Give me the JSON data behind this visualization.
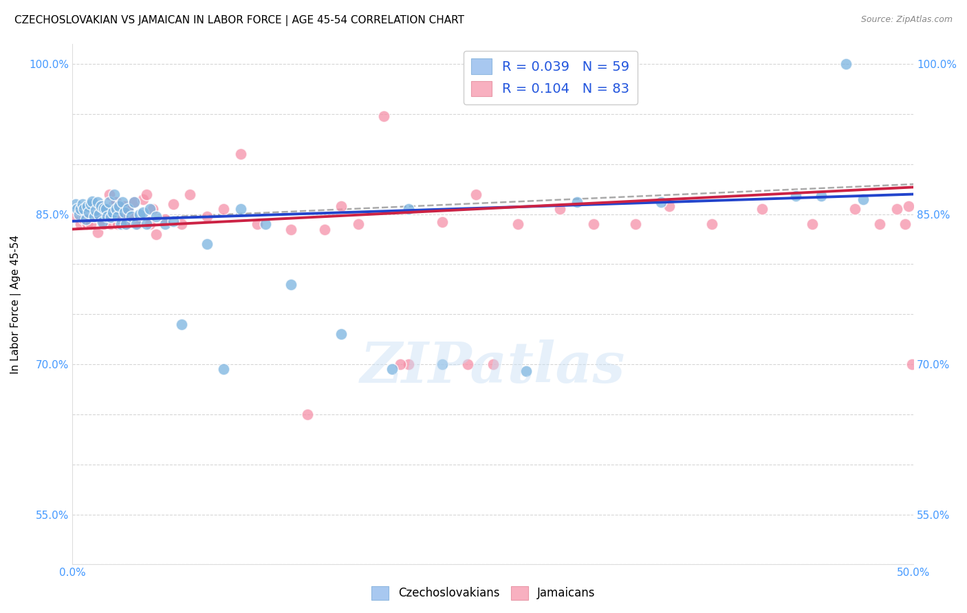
{
  "title": "CZECHOSLOVAKIAN VS JAMAICAN IN LABOR FORCE | AGE 45-54 CORRELATION CHART",
  "source": "Source: ZipAtlas.com",
  "ylabel": "In Labor Force | Age 45-54",
  "xlim": [
    0.0,
    0.5
  ],
  "ylim": [
    0.5,
    1.02
  ],
  "watermark": "ZIPatlas",
  "blue_scatter_x": [
    0.002,
    0.003,
    0.004,
    0.005,
    0.006,
    0.007,
    0.008,
    0.009,
    0.01,
    0.011,
    0.012,
    0.013,
    0.014,
    0.015,
    0.016,
    0.017,
    0.018,
    0.019,
    0.02,
    0.021,
    0.022,
    0.023,
    0.024,
    0.025,
    0.026,
    0.027,
    0.028,
    0.029,
    0.03,
    0.031,
    0.032,
    0.033,
    0.035,
    0.037,
    0.038,
    0.04,
    0.042,
    0.044,
    0.046,
    0.05,
    0.055,
    0.06,
    0.065,
    0.08,
    0.09,
    0.1,
    0.115,
    0.13,
    0.16,
    0.19,
    0.2,
    0.22,
    0.27,
    0.3,
    0.35,
    0.43,
    0.445,
    0.46,
    0.47
  ],
  "blue_scatter_y": [
    0.86,
    0.855,
    0.85,
    0.855,
    0.86,
    0.855,
    0.845,
    0.858,
    0.852,
    0.86,
    0.863,
    0.848,
    0.854,
    0.862,
    0.85,
    0.858,
    0.842,
    0.856,
    0.855,
    0.848,
    0.862,
    0.847,
    0.852,
    0.87,
    0.855,
    0.848,
    0.858,
    0.84,
    0.862,
    0.852,
    0.84,
    0.855,
    0.848,
    0.862,
    0.84,
    0.85,
    0.852,
    0.84,
    0.855,
    0.848,
    0.84,
    0.843,
    0.74,
    0.82,
    0.695,
    0.855,
    0.84,
    0.78,
    0.73,
    0.695,
    0.855,
    0.7,
    0.693,
    0.862,
    0.862,
    0.868,
    0.868,
    1.0,
    0.865
  ],
  "pink_scatter_x": [
    0.002,
    0.004,
    0.005,
    0.006,
    0.007,
    0.008,
    0.009,
    0.01,
    0.011,
    0.012,
    0.013,
    0.014,
    0.015,
    0.016,
    0.017,
    0.018,
    0.019,
    0.02,
    0.021,
    0.022,
    0.023,
    0.024,
    0.025,
    0.026,
    0.027,
    0.028,
    0.029,
    0.03,
    0.031,
    0.032,
    0.033,
    0.035,
    0.037,
    0.039,
    0.042,
    0.044,
    0.046,
    0.048,
    0.05,
    0.055,
    0.06,
    0.065,
    0.07,
    0.08,
    0.09,
    0.1,
    0.11,
    0.13,
    0.15,
    0.16,
    0.17,
    0.185,
    0.2,
    0.22,
    0.24,
    0.265,
    0.29,
    0.31,
    0.335,
    0.355,
    0.38,
    0.41,
    0.44,
    0.465,
    0.48,
    0.49,
    0.495,
    0.497,
    0.499,
    0.14,
    0.195,
    0.235,
    0.25
  ],
  "pink_scatter_y": [
    0.848,
    0.854,
    0.84,
    0.855,
    0.845,
    0.85,
    0.84,
    0.852,
    0.84,
    0.855,
    0.848,
    0.854,
    0.832,
    0.85,
    0.845,
    0.858,
    0.84,
    0.848,
    0.855,
    0.87,
    0.84,
    0.858,
    0.855,
    0.862,
    0.84,
    0.852,
    0.845,
    0.848,
    0.858,
    0.84,
    0.855,
    0.848,
    0.862,
    0.84,
    0.865,
    0.87,
    0.84,
    0.855,
    0.83,
    0.845,
    0.86,
    0.84,
    0.87,
    0.848,
    0.855,
    0.91,
    0.84,
    0.835,
    0.835,
    0.858,
    0.84,
    0.948,
    0.7,
    0.842,
    0.87,
    0.84,
    0.855,
    0.84,
    0.84,
    0.858,
    0.84,
    0.855,
    0.84,
    0.855,
    0.84,
    0.855,
    0.84,
    0.858,
    0.7,
    0.65,
    0.7,
    0.7,
    0.7
  ],
  "blue_line_x": [
    0.0,
    0.5
  ],
  "blue_line_y": [
    0.843,
    0.87
  ],
  "pink_line_x": [
    0.0,
    0.5
  ],
  "pink_line_y": [
    0.835,
    0.877
  ],
  "dash_line_x": [
    0.0,
    0.5
  ],
  "dash_line_y": [
    0.843,
    0.88
  ],
  "blue_scatter_color": "#7ab3e0",
  "pink_scatter_color": "#f590a8",
  "blue_line_color": "#2244cc",
  "pink_line_color": "#cc2244",
  "dash_line_color": "#aaaaaa",
  "grid_color": "#cccccc",
  "tick_color": "#4499ff",
  "background_color": "#ffffff",
  "title_fontsize": 11,
  "axis_label_fontsize": 11,
  "tick_fontsize": 11
}
